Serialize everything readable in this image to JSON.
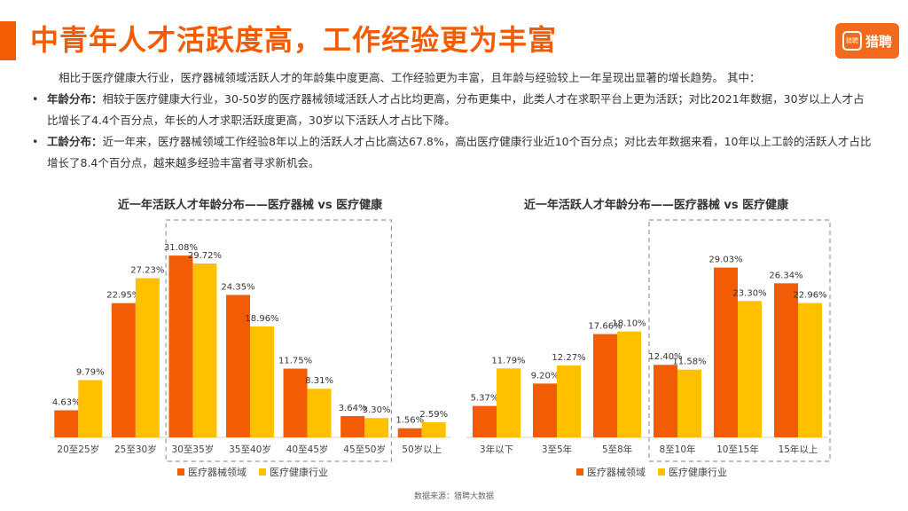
{
  "header": {
    "title": "中青年人才活跃度高，工作经验更为丰富",
    "logo_text": "猎聘",
    "logo_mark": "猎聘"
  },
  "body": {
    "intro": "相比于医疗健康大行业，医疗器械领域活跃人才的年龄集中度更高、工作经验更为丰富，且年龄与经验较上一年呈现出显著的增长趋势。 其中：",
    "bullets": [
      {
        "head": "年龄分布",
        "sep": "：",
        "text": "相较于医疗健康大行业，30-50岁的医疗器械领域活跃人才占比均更高，分布更集中，此类人才在求职平台上更为活跃；对比2021年数据，30岁以上人才占比增长了4.4个百分点，年长的人才求职活跃度更高，30岁以下活跃人才占比下降。"
      },
      {
        "head": "工龄分布",
        "sep": "：",
        "text": "近一年来，医疗器械领域工作经验8年以上的活跃人才占比高达67.8%，高出医疗健康行业近10个百分点；对比去年数据来看，10年以上工龄的活跃人才占比增长了8.4个百分点，越来越多经验丰富者寻求新机会。"
      }
    ]
  },
  "source": "数据来源：猎聘大数据",
  "colors": {
    "accent": "#F25C05",
    "series1": "#F25C05",
    "series2": "#FFC000"
  },
  "chart_data": [
    {
      "type": "bar",
      "title": "近一年活跃人才年龄分布——医疗器械 vs 医疗健康",
      "categories": [
        "20至25岁",
        "25至30岁",
        "30至35岁",
        "35至40岁",
        "40至45岁",
        "45至50岁",
        "50岁以上"
      ],
      "series": [
        {
          "name": "医疗器械领域",
          "values": [
            4.63,
            22.95,
            31.08,
            24.35,
            11.75,
            3.64,
            1.56
          ],
          "labels": [
            "4.63%",
            "22.95%",
            "31.08%",
            "24.35%",
            "11.75%",
            "3.64%",
            "1.56%"
          ]
        },
        {
          "name": "医疗健康行业",
          "values": [
            9.79,
            27.23,
            29.72,
            18.96,
            8.31,
            3.3,
            2.59
          ],
          "labels": [
            "9.79%",
            "27.23%",
            "29.72%",
            "18.96%",
            "8.31%",
            "3.30%",
            "2.59%"
          ]
        }
      ],
      "ylim": [
        0,
        32
      ],
      "highlight": [
        2,
        5
      ],
      "legend": "bottom"
    },
    {
      "type": "bar",
      "title": "近一年活跃人才年龄分布——医疗器械 vs 医疗健康",
      "categories": [
        "3年以下",
        "3至5年",
        "5至8年",
        "8至10年",
        "10至15年",
        "15年以上"
      ],
      "series": [
        {
          "name": "医疗器械领域",
          "values": [
            5.37,
            9.2,
            17.66,
            12.4,
            29.03,
            26.34
          ],
          "labels": [
            "5.37%",
            "9.20%",
            "17.66%",
            "12.40%",
            "29.03%",
            "26.34%"
          ]
        },
        {
          "name": "医疗健康行业",
          "values": [
            11.79,
            12.27,
            18.1,
            11.58,
            23.3,
            22.96
          ],
          "labels": [
            "11.79%",
            "12.27%",
            "18.10%",
            "11.58%",
            "23.30%",
            "22.96%"
          ]
        }
      ],
      "ylim": [
        0,
        32
      ],
      "highlight": [
        3,
        5
      ],
      "legend": "bottom"
    }
  ]
}
